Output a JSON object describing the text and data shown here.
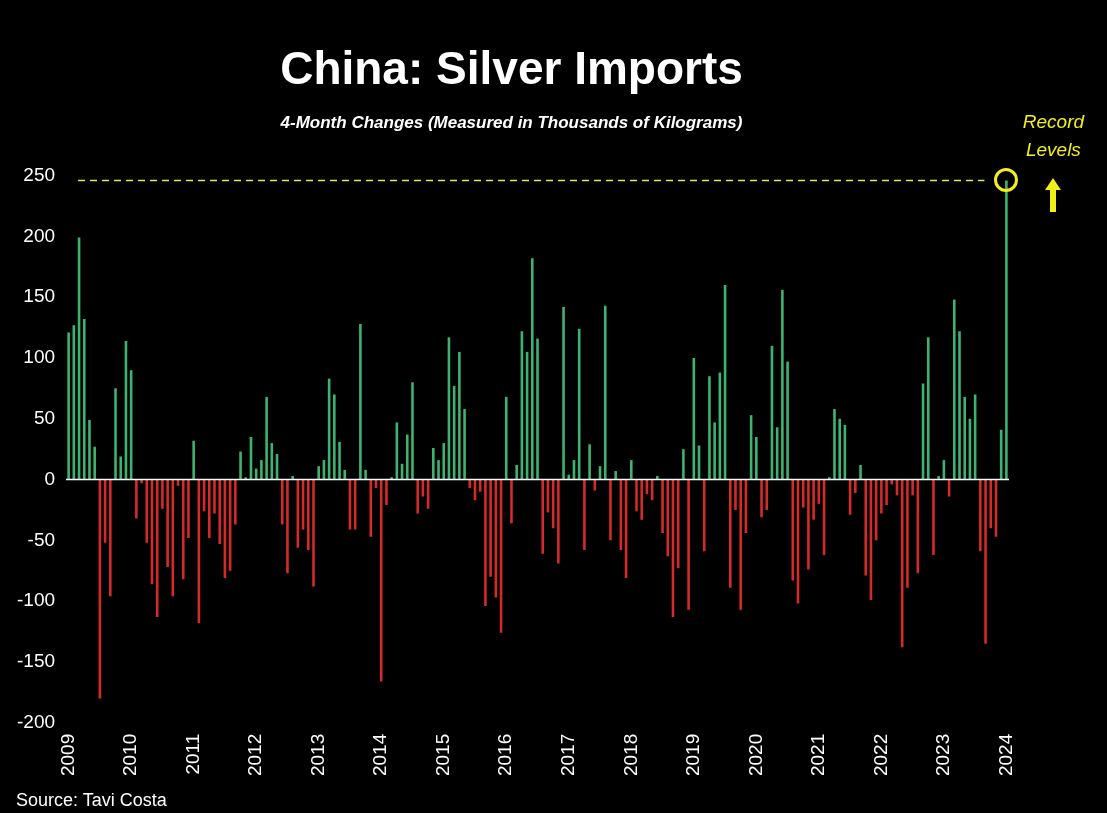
{
  "chart_data": {
    "type": "bar",
    "title": "China: Silver Imports",
    "subtitle": "4-Month Changes (Measured in Thousands of Kilograms)",
    "categories": [
      "2009",
      null,
      null,
      null,
      null,
      null,
      null,
      null,
      null,
      null,
      null,
      null,
      "2010",
      null,
      null,
      null,
      null,
      null,
      null,
      null,
      null,
      null,
      null,
      null,
      "2011",
      null,
      null,
      null,
      null,
      null,
      null,
      null,
      null,
      null,
      null,
      null,
      "2012",
      null,
      null,
      null,
      null,
      null,
      null,
      null,
      null,
      null,
      null,
      null,
      "2013",
      null,
      null,
      null,
      null,
      null,
      null,
      null,
      null,
      null,
      null,
      null,
      "2014",
      null,
      null,
      null,
      null,
      null,
      null,
      null,
      null,
      null,
      null,
      null,
      "2015",
      null,
      null,
      null,
      null,
      null,
      null,
      null,
      null,
      null,
      null,
      null,
      "2016",
      null,
      null,
      null,
      null,
      null,
      null,
      null,
      null,
      null,
      null,
      null,
      "2017",
      null,
      null,
      null,
      null,
      null,
      null,
      null,
      null,
      null,
      null,
      null,
      "2018",
      null,
      null,
      null,
      null,
      null,
      null,
      null,
      null,
      null,
      null,
      null,
      "2019",
      null,
      null,
      null,
      null,
      null,
      null,
      null,
      null,
      null,
      null,
      null,
      "2020",
      null,
      null,
      null,
      null,
      null,
      null,
      null,
      null,
      null,
      null,
      null,
      "2021",
      null,
      null,
      null,
      null,
      null,
      null,
      null,
      null,
      null,
      null,
      null,
      "2022",
      null,
      null,
      null,
      null,
      null,
      null,
      null,
      null,
      null,
      null,
      null,
      "2023",
      null,
      null,
      null,
      null,
      null,
      null,
      null,
      null,
      null,
      null,
      null,
      "2024"
    ],
    "values": [
      121,
      127,
      199,
      132,
      49,
      27,
      -180,
      -52,
      -96,
      75,
      19,
      114,
      90,
      -32,
      -3,
      -52,
      -86,
      -113,
      -24,
      -72,
      -96,
      -5,
      -82,
      -48,
      32,
      -118,
      -26,
      -48,
      -28,
      -53,
      -81,
      -75,
      -37,
      23,
      2,
      35,
      9,
      16,
      68,
      30,
      21,
      -37,
      -77,
      3,
      -56,
      -41,
      -58,
      -88,
      11,
      16,
      83,
      70,
      31,
      8,
      -41,
      -41,
      128,
      8,
      -47,
      -7,
      -166,
      -21,
      2,
      47,
      13,
      37,
      80,
      -28,
      -14,
      -24,
      26,
      16,
      30,
      117,
      77,
      105,
      58,
      -7,
      -17,
      -10,
      -104,
      -80,
      -97,
      -126,
      68,
      -36,
      12,
      122,
      105,
      182,
      116,
      -61,
      -27,
      -40,
      -69,
      142,
      4,
      16,
      124,
      -58,
      29,
      -9,
      11,
      143,
      -50,
      7,
      -58,
      -81,
      16,
      -26,
      -33,
      -12,
      -17,
      3,
      -44,
      -63,
      -113,
      -73,
      25,
      -107,
      100,
      28,
      -59,
      85,
      47,
      88,
      160,
      -89,
      -25,
      -107,
      -44,
      53,
      35,
      -31,
      -25,
      110,
      43,
      156,
      97,
      -83,
      -102,
      -23,
      -74,
      -33,
      -20,
      -62,
      2,
      58,
      50,
      45,
      -29,
      -11,
      12,
      -79,
      -99,
      -50,
      -28,
      -21,
      -4,
      -13,
      -138,
      -89,
      -13,
      -77,
      79,
      117,
      -62,
      3,
      16,
      -14,
      148,
      122,
      68,
      50,
      70,
      -59,
      -135,
      -40,
      -47,
      41,
      246
    ],
    "colors": [
      "#3cb371",
      "#3cb371",
      "#3cb371",
      "#3cb371",
      "#3cb371",
      "#3cb371",
      "#d42a2a",
      "#d42a2a",
      "#d42a2a",
      "#3cb371",
      "#3cb371",
      "#3cb371",
      "#3cb371",
      "#d42a2a",
      "#d42a2a",
      "#d42a2a",
      "#d42a2a",
      "#d42a2a",
      "#d42a2a",
      "#d42a2a",
      "#d42a2a",
      "#d42a2a",
      "#d42a2a",
      "#d42a2a",
      "#3cb371",
      "#d42a2a",
      "#d42a2a",
      "#d42a2a",
      "#d42a2a",
      "#d42a2a",
      "#d42a2a",
      "#d42a2a",
      "#d42a2a",
      "#3cb371",
      "#3cb371",
      "#3cb371",
      "#3cb371",
      "#3cb371",
      "#3cb371",
      "#3cb371",
      "#3cb371",
      "#d42a2a",
      "#d42a2a",
      "#3cb371",
      "#d42a2a",
      "#d42a2a",
      "#d42a2a",
      "#d42a2a",
      "#3cb371",
      "#3cb371",
      "#3cb371",
      "#3cb371",
      "#3cb371",
      "#3cb371",
      "#d42a2a",
      "#d42a2a",
      "#3cb371",
      "#3cb371",
      "#d42a2a",
      "#d42a2a",
      "#d42a2a",
      "#d42a2a",
      "#3cb371",
      "#3cb371",
      "#3cb371",
      "#3cb371",
      "#3cb371",
      "#d42a2a",
      "#d42a2a",
      "#d42a2a",
      "#3cb371",
      "#3cb371",
      "#3cb371",
      "#3cb371",
      "#3cb371",
      "#3cb371",
      "#3cb371",
      "#d42a2a",
      "#d42a2a",
      "#d42a2a",
      "#d42a2a",
      "#d42a2a",
      "#d42a2a",
      "#d42a2a",
      "#3cb371",
      "#d42a2a",
      "#3cb371",
      "#3cb371",
      "#3cb371",
      "#3cb371",
      "#3cb371",
      "#d42a2a",
      "#d42a2a",
      "#d42a2a",
      "#d42a2a",
      "#3cb371",
      "#3cb371",
      "#3cb371",
      "#3cb371",
      "#d42a2a",
      "#3cb371",
      "#d42a2a",
      "#3cb371",
      "#3cb371",
      "#d42a2a",
      "#3cb371",
      "#d42a2a",
      "#d42a2a",
      "#3cb371",
      "#d42a2a",
      "#d42a2a",
      "#d42a2a",
      "#d42a2a",
      "#3cb371",
      "#d42a2a",
      "#d42a2a",
      "#d42a2a",
      "#d42a2a",
      "#3cb371",
      "#d42a2a",
      "#3cb371",
      "#3cb371",
      "#d42a2a",
      "#3cb371",
      "#3cb371",
      "#3cb371",
      "#3cb371",
      "#d42a2a",
      "#d42a2a",
      "#d42a2a",
      "#d42a2a",
      "#3cb371",
      "#3cb371",
      "#d42a2a",
      "#d42a2a",
      "#3cb371",
      "#3cb371",
      "#3cb371",
      "#3cb371",
      "#d42a2a",
      "#d42a2a",
      "#d42a2a",
      "#d42a2a",
      "#d42a2a",
      "#d42a2a",
      "#d42a2a",
      "#3cb371",
      "#3cb371",
      "#3cb371",
      "#3cb371",
      "#d42a2a",
      "#d42a2a",
      "#3cb371",
      "#d42a2a",
      "#d42a2a",
      "#d42a2a",
      "#d42a2a",
      "#d42a2a",
      "#d42a2a",
      "#d42a2a",
      "#d42a2a",
      "#d42a2a",
      "#d42a2a",
      "#d42a2a",
      "#3cb371",
      "#3cb371",
      "#d42a2a",
      "#3cb371",
      "#3cb371",
      "#d42a2a",
      "#3cb371",
      "#3cb371",
      "#3cb371",
      "#3cb371",
      "#3cb371",
      "#d42a2a",
      "#d42a2a",
      "#d42a2a",
      "#d42a2a",
      "#3cb371",
      "#3cb371"
    ],
    "ylim": [
      -200,
      250
    ],
    "yticks": [
      -200,
      -150,
      -100,
      -50,
      0,
      50,
      100,
      150,
      200,
      250
    ],
    "ref_lines": [
      {
        "axis": "y",
        "value": 246,
        "color": "#e6e65a",
        "line_style": "dashed"
      }
    ],
    "annotations": [
      "Source: Tavi Costa",
      {
        "text": "Record Levels",
        "x": "2024",
        "y": 246
      }
    ]
  }
}
